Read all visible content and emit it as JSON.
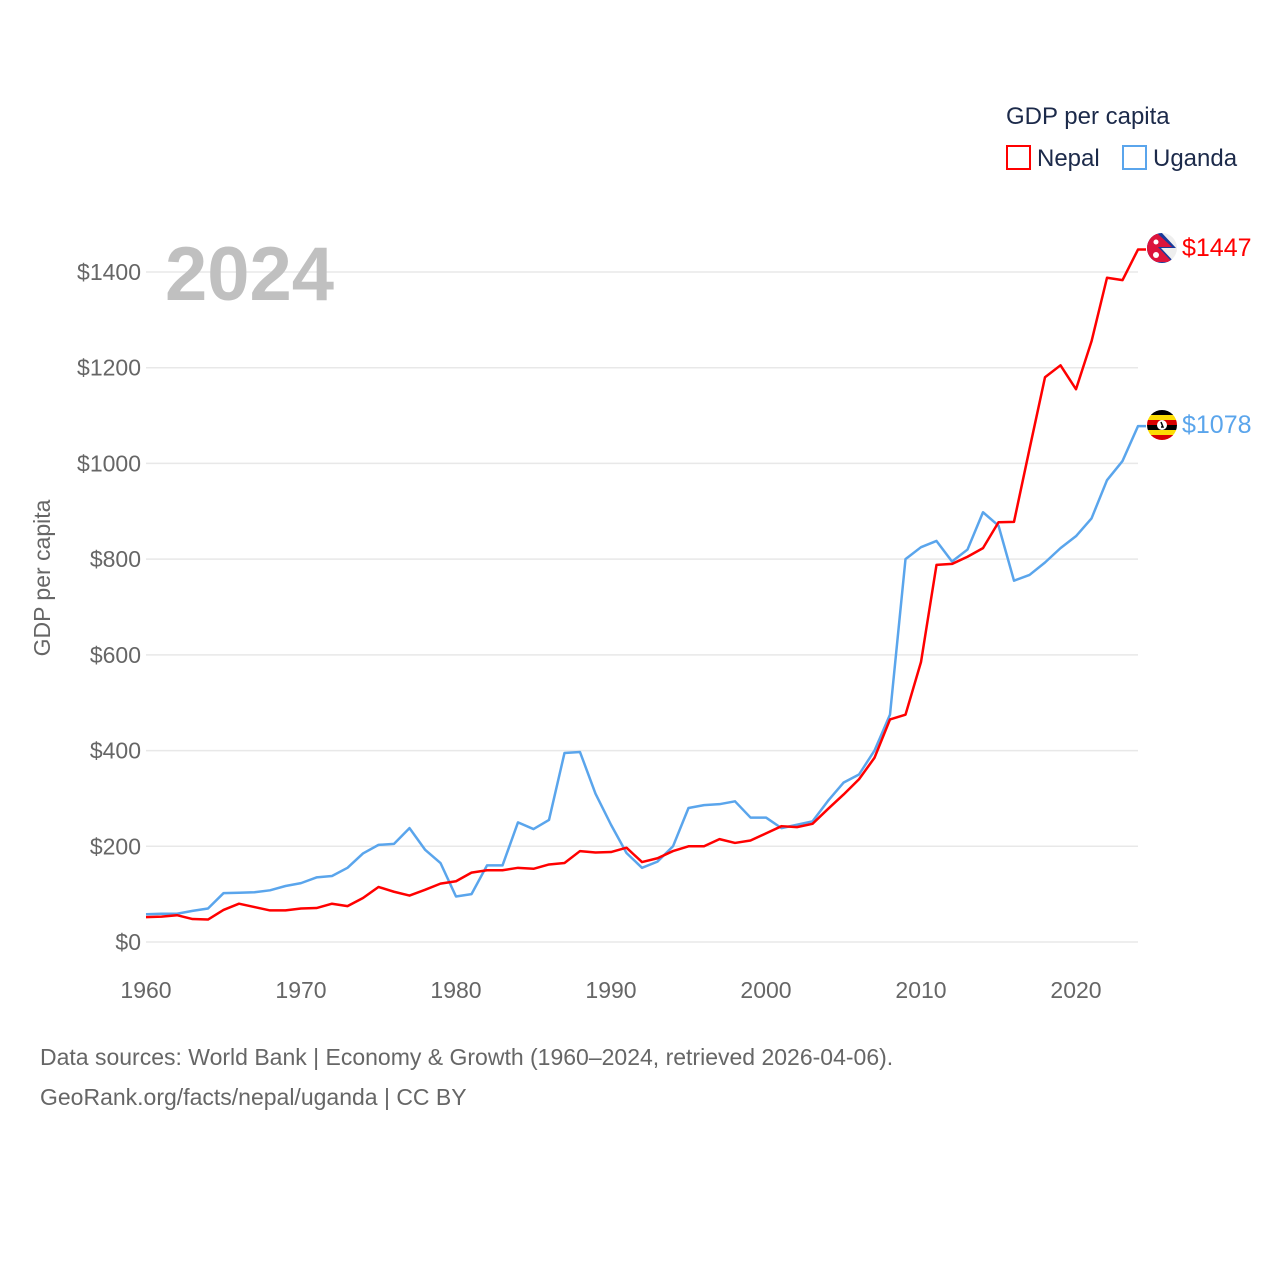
{
  "chart_data": {
    "type": "line",
    "title": "",
    "year_label": "2024",
    "xlabel": "",
    "ylabel": "GDP per capita",
    "xlim": [
      1960,
      2024
    ],
    "ylim": [
      0,
      1400
    ],
    "x_ticks": [
      "1960",
      "1970",
      "1980",
      "1990",
      "2000",
      "2010",
      "2020"
    ],
    "y_ticks": [
      "$0",
      "$200",
      "$400",
      "$600",
      "$800",
      "$1000",
      "$1200",
      "$1400"
    ],
    "legend": {
      "title": "GDP per capita",
      "placement": "top-right"
    },
    "x": [
      1960,
      1961,
      1962,
      1963,
      1964,
      1965,
      1966,
      1967,
      1968,
      1969,
      1970,
      1971,
      1972,
      1973,
      1974,
      1975,
      1976,
      1977,
      1978,
      1979,
      1980,
      1981,
      1982,
      1983,
      1984,
      1985,
      1986,
      1987,
      1988,
      1989,
      1990,
      1991,
      1992,
      1993,
      1994,
      1995,
      1996,
      1997,
      1998,
      1999,
      2000,
      2001,
      2002,
      2003,
      2004,
      2005,
      2006,
      2007,
      2008,
      2009,
      2010,
      2011,
      2012,
      2013,
      2014,
      2015,
      2016,
      2017,
      2018,
      2019,
      2020,
      2021,
      2022,
      2023,
      2024
    ],
    "series": [
      {
        "name": "Nepal",
        "color": "#ff0000",
        "end_label": "$1447",
        "flag": "nepal-flag",
        "values": [
          52,
          53,
          56,
          48,
          47,
          67,
          80,
          73,
          66,
          66,
          70,
          71,
          80,
          75,
          92,
          115,
          105,
          97,
          109,
          122,
          127,
          145,
          150,
          150,
          155,
          153,
          162,
          165,
          190,
          187,
          188,
          197,
          167,
          175,
          190,
          200,
          200,
          215,
          207,
          212,
          227,
          242,
          240,
          247,
          278,
          308,
          340,
          385,
          465,
          475,
          585,
          788,
          790,
          805,
          823,
          877,
          878,
          1030,
          1180,
          1205,
          1155,
          1255,
          1388,
          1383,
          1447
        ]
      },
      {
        "name": "Uganda",
        "color": "#5aa5ec",
        "end_label": "$1078",
        "flag": "uganda-flag",
        "values": [
          58,
          59,
          59,
          65,
          70,
          102,
          103,
          104,
          108,
          117,
          123,
          135,
          138,
          155,
          185,
          203,
          205,
          238,
          193,
          165,
          95,
          100,
          160,
          160,
          250,
          236,
          255,
          395,
          397,
          310,
          245,
          186,
          155,
          168,
          200,
          280,
          286,
          288,
          294,
          260,
          260,
          238,
          245,
          252,
          295,
          333,
          350,
          400,
          475,
          800,
          825,
          838,
          795,
          820,
          898,
          870,
          755,
          767,
          793,
          823,
          848,
          885,
          965,
          1005,
          1078
        ]
      }
    ]
  },
  "footer": {
    "line1": "Data sources: World Bank | Economy & Growth (1960–2024, retrieved 2026-04-06).",
    "line2": "GeoRank.org/facts/nepal/uganda | CC BY"
  }
}
